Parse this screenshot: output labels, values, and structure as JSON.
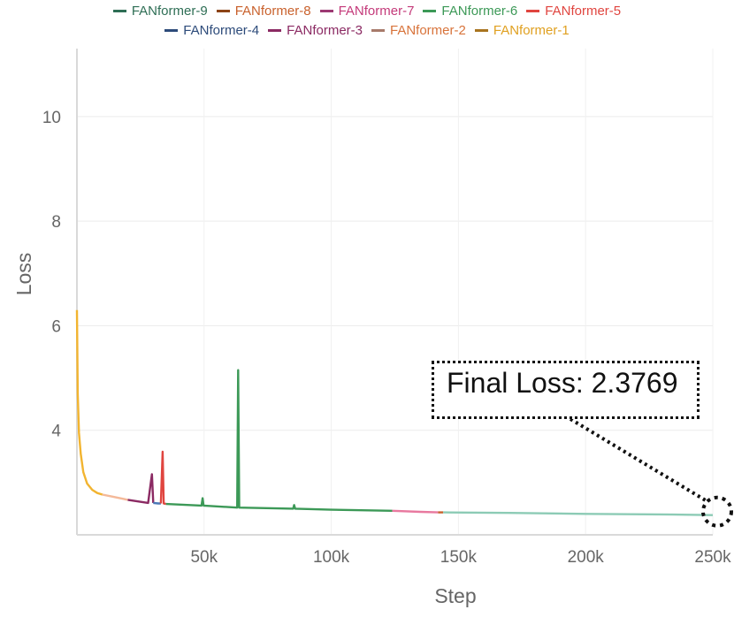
{
  "chart_data": {
    "type": "line",
    "xlabel": "Step",
    "ylabel": "Loss",
    "xlim": [
      0,
      250000
    ],
    "ylim": [
      2.0,
      11.3
    ],
    "x_ticks": [
      {
        "value": 50000,
        "label": "50k"
      },
      {
        "value": 100000,
        "label": "100k"
      },
      {
        "value": 150000,
        "label": "150k"
      },
      {
        "value": 200000,
        "label": "200k"
      },
      {
        "value": 250000,
        "label": "250k"
      }
    ],
    "y_ticks": [
      {
        "value": 4,
        "label": "4"
      },
      {
        "value": 6,
        "label": "6"
      },
      {
        "value": 8,
        "label": "8"
      },
      {
        "value": 10,
        "label": "10"
      }
    ],
    "grid": true,
    "legend_position": "top",
    "legend_rows": [
      [
        "FANformer-9",
        "FANformer-8",
        "FANformer-7",
        "FANformer-6",
        "FANformer-5"
      ],
      [
        "FANformer-4",
        "FANformer-3",
        "FANformer-2",
        "FANformer-1"
      ]
    ],
    "series": [
      {
        "name": "FANformer-1",
        "color": "#f2b430",
        "x": [
          0,
          300,
          800,
          1500,
          2500,
          4000,
          6000,
          8000,
          10000
        ],
        "y": [
          6.3,
          4.7,
          3.95,
          3.55,
          3.2,
          2.98,
          2.86,
          2.8,
          2.77
        ]
      },
      {
        "name": "FANformer-2",
        "color": "#f4b999",
        "x": [
          10000,
          14000,
          18000,
          20000
        ],
        "y": [
          2.77,
          2.73,
          2.69,
          2.67
        ]
      },
      {
        "name": "FANformer-3",
        "color": "#8b2a63",
        "x": [
          20000,
          24000,
          28000,
          29500,
          30000
        ],
        "y": [
          2.67,
          2.64,
          2.61,
          3.16,
          2.61
        ]
      },
      {
        "name": "FANformer-4",
        "color": "#4a79b8",
        "x": [
          30000,
          32000,
          33000
        ],
        "y": [
          2.61,
          2.6,
          2.6
        ]
      },
      {
        "name": "FANformer-5",
        "color": "#e0453f",
        "x": [
          33000,
          33700,
          34100,
          35000
        ],
        "y": [
          2.6,
          3.59,
          2.6,
          2.59
        ]
      },
      {
        "name": "FANformer-6",
        "color": "#3c9957",
        "x": [
          35000,
          49000,
          49400,
          49800,
          63000,
          63400,
          63800,
          85000,
          85400,
          85800,
          100000,
          124000
        ],
        "y": [
          2.59,
          2.56,
          2.7,
          2.56,
          2.52,
          5.15,
          2.52,
          2.5,
          2.57,
          2.5,
          2.48,
          2.46
        ]
      },
      {
        "name": "FANformer-7",
        "color": "#e8799f",
        "x": [
          124000,
          135000,
          142000
        ],
        "y": [
          2.46,
          2.44,
          2.43
        ]
      },
      {
        "name": "FANformer-8",
        "color": "#c9612c",
        "x": [
          142000,
          144000
        ],
        "y": [
          2.43,
          2.43
        ]
      },
      {
        "name": "FANformer-9",
        "color": "#8ccbb5",
        "x": [
          144000,
          170000,
          200000,
          230000,
          250000
        ],
        "y": [
          2.43,
          2.42,
          2.4,
          2.39,
          2.3769
        ]
      }
    ],
    "annotation": {
      "text": "Final Loss: 2.3769",
      "x": 250000,
      "y": 2.3769
    }
  },
  "legend_colors": {
    "FANformer-9": "#2e6e55",
    "FANformer-8": "#8c4316",
    "FANformer-7": "#9c3a73",
    "FANformer-6": "#3c9957",
    "FANformer-5": "#e0453f",
    "FANformer-4": "#2d4b7a",
    "FANformer-3": "#8b2a63",
    "FANformer-2": "#a77a6a",
    "FANformer-1": "#a8741f"
  },
  "legend_text_colors": {
    "FANformer-9": "#2e6e55",
    "FANformer-8": "#c9612c",
    "FANformer-7": "#c43a7a",
    "FANformer-6": "#3c9957",
    "FANformer-5": "#e0453f",
    "FANformer-4": "#2d4b7a",
    "FANformer-3": "#8b2a63",
    "FANformer-2": "#d8733a",
    "FANformer-1": "#e0a020"
  }
}
